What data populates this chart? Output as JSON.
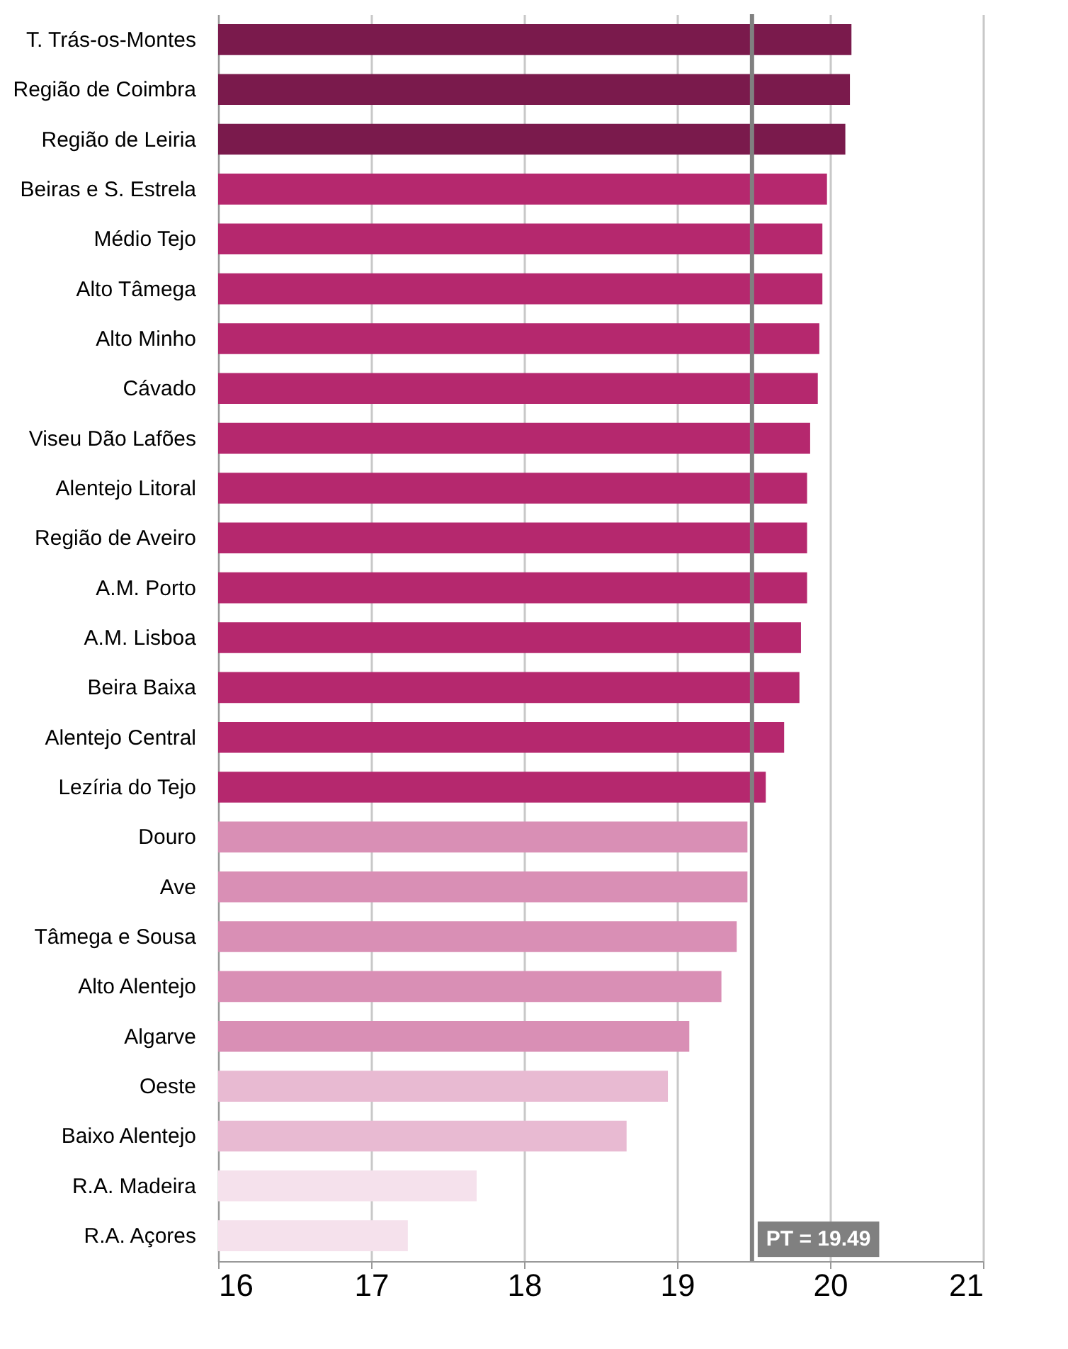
{
  "chart_data": {
    "type": "bar",
    "orientation": "horizontal",
    "categories": [
      "T. Trás-os-Montes",
      "Região de Coimbra",
      "Região de Leiria",
      "Beiras e S. Estrela",
      "Médio Tejo",
      "Alto Tâmega",
      "Alto Minho",
      "Cávado",
      "Viseu Dão Lafões",
      "Alentejo Litoral",
      "Região de Aveiro",
      "A.M. Porto",
      "A.M. Lisboa",
      "Beira Baixa",
      "Alentejo Central",
      "Lezíria do Tejo",
      "Douro",
      "Ave",
      "Tâmega e Sousa",
      "Alto Alentejo",
      "Algarve",
      "Oeste",
      "Baixo Alentejo",
      "R.A. Madeira",
      "R.A. Açores"
    ],
    "values": [
      20.14,
      20.13,
      20.1,
      19.98,
      19.95,
      19.95,
      19.93,
      19.92,
      19.87,
      19.85,
      19.85,
      19.85,
      19.81,
      19.8,
      19.7,
      19.58,
      19.46,
      19.46,
      19.39,
      19.29,
      19.08,
      18.94,
      18.67,
      17.69,
      17.24
    ],
    "colors": [
      "#7a1a4c",
      "#7a1a4c",
      "#7a1a4c",
      "#b5286e",
      "#b5286e",
      "#b5286e",
      "#b5286e",
      "#b5286e",
      "#b5286e",
      "#b5286e",
      "#b5286e",
      "#b5286e",
      "#b5286e",
      "#b5286e",
      "#b5286e",
      "#b5286e",
      "#d98fb5",
      "#d98fb5",
      "#d98fb5",
      "#d98fb5",
      "#d98fb5",
      "#e8bad2",
      "#e8bad2",
      "#f5e1ec",
      "#f5e1ec"
    ],
    "xlim": [
      16,
      21
    ],
    "xticks": [
      16,
      17,
      18,
      19,
      20,
      21
    ],
    "grid": "x",
    "ref_lines": [
      {
        "axis": "x",
        "value": 19.49,
        "label": "PT = 19.49",
        "color": "#808080"
      }
    ]
  }
}
